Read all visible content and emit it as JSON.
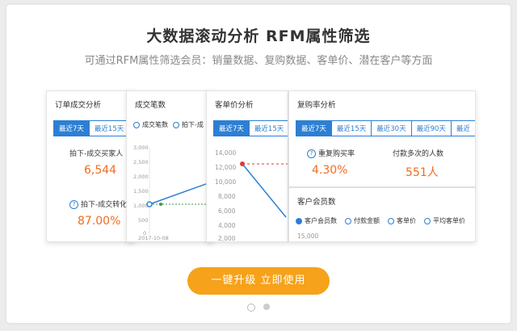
{
  "header": {
    "title": "大数据滚动分析  RFM属性筛选",
    "subtitle": "可通过RFM属性筛选会员：销量数据、复购数据、客单价、潜在客户等方面"
  },
  "card_orders": {
    "title": "订单成交分析",
    "tabs": [
      "最近7天",
      "最近15天"
    ],
    "buyers_label": "拍下-成交买家人",
    "buyers_value": "6,544",
    "conv_label": "拍下-成交转化",
    "conv_value": "87.00%"
  },
  "card_deals": {
    "title": "成交笔数",
    "legend": [
      "成交笔数",
      "拍下-成"
    ],
    "y_ticks": [
      "3,000",
      "2,500",
      "2,000",
      "1,500",
      "1,000",
      "500",
      "0"
    ],
    "x_tick": "2017-10-08"
  },
  "card_avg": {
    "title": "客单价分析",
    "tabs": [
      "最近7天",
      "最近15天"
    ],
    "y_ticks": [
      "14,000",
      "12,000",
      "10,000",
      "8,000",
      "6,000",
      "4,000",
      "2,000"
    ]
  },
  "card_repurchase": {
    "title": "复购率分析",
    "tabs": [
      "最近7天",
      "最近15天",
      "最近30天",
      "最近90天",
      "最近"
    ],
    "rate_label": "重复购买率",
    "rate_value": "4.30%",
    "count_label": "付款多次的人数",
    "count_value": "551人"
  },
  "card_members": {
    "title": "客户会员数",
    "legend": [
      "客户会员数",
      "付款金额",
      "客单价",
      "平均客单价"
    ],
    "y_tick": "15,000"
  },
  "cta": {
    "label": "一键升级  立即使用"
  },
  "colors": {
    "accent": "#2d7fd3",
    "value": "#f06c1e",
    "cta": "#f6a21a"
  }
}
